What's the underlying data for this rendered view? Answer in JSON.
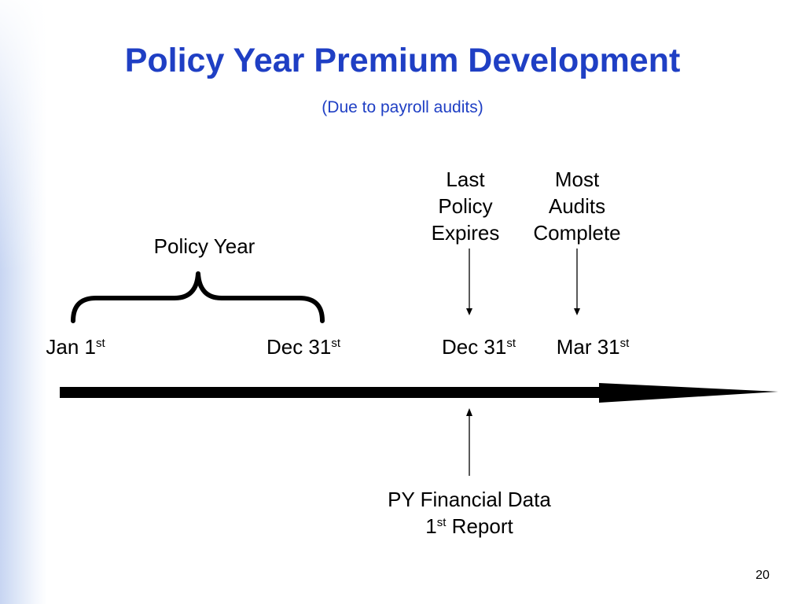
{
  "slide": {
    "title": "Policy Year Premium Development",
    "subtitle": "(Due to payroll audits)",
    "page_number": "20"
  },
  "events": {
    "last_policy_expires": [
      "Last",
      "Policy",
      "Expires"
    ],
    "most_audits_complete": [
      "Most",
      "Audits",
      "Complete"
    ]
  },
  "bracket_label": "Policy Year",
  "dates": {
    "jan1": {
      "text": "Jan 1",
      "suffix": "st"
    },
    "dec31_a": {
      "text": "Dec 31",
      "suffix": "st"
    },
    "dec31_b": {
      "text": "Dec 31",
      "suffix": "st"
    },
    "mar31": {
      "text": "Mar 31",
      "suffix": "st"
    }
  },
  "report": {
    "line1": "PY Financial Data",
    "line2_prefix": "1",
    "line2_suffix": "st",
    "line2_rest": " Report"
  },
  "colors": {
    "title": "#1f3fc4",
    "text": "#000000",
    "arrow": "#000000"
  }
}
